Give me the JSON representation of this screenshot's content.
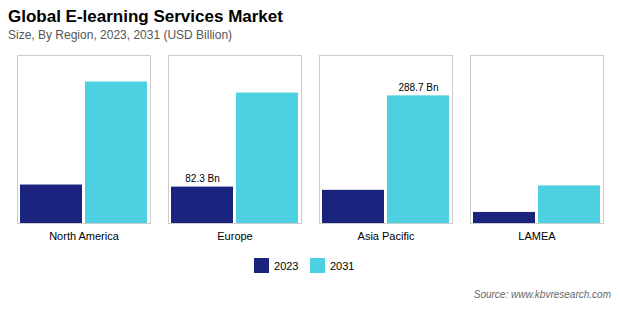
{
  "chart_data": {
    "type": "bar",
    "title": "Global E-learning Services Market",
    "subtitle": "Size, By Region, 2023, 2031 (USD Billion)",
    "source": "Source: www.kbvresearch.com",
    "categories": [
      "North America",
      "Europe",
      "Asia Pacific",
      "LAMEA"
    ],
    "series": [
      {
        "name": "2023",
        "color": "#1a237e",
        "values": [
          87,
          82.3,
          75,
          25
        ]
      },
      {
        "name": "2031",
        "color": "#4dd0e1",
        "values": [
          320,
          295,
          288.7,
          85
        ]
      }
    ],
    "annotations": [
      {
        "text": "82.3 Bn",
        "category": "Europe",
        "series": "2023"
      },
      {
        "text": "288.7 Bn",
        "category": "Asia Pacific",
        "series": "2031"
      }
    ],
    "ylim": [
      0,
      380
    ],
    "tick_labels": "x",
    "grid": false,
    "legend": "bottom"
  }
}
